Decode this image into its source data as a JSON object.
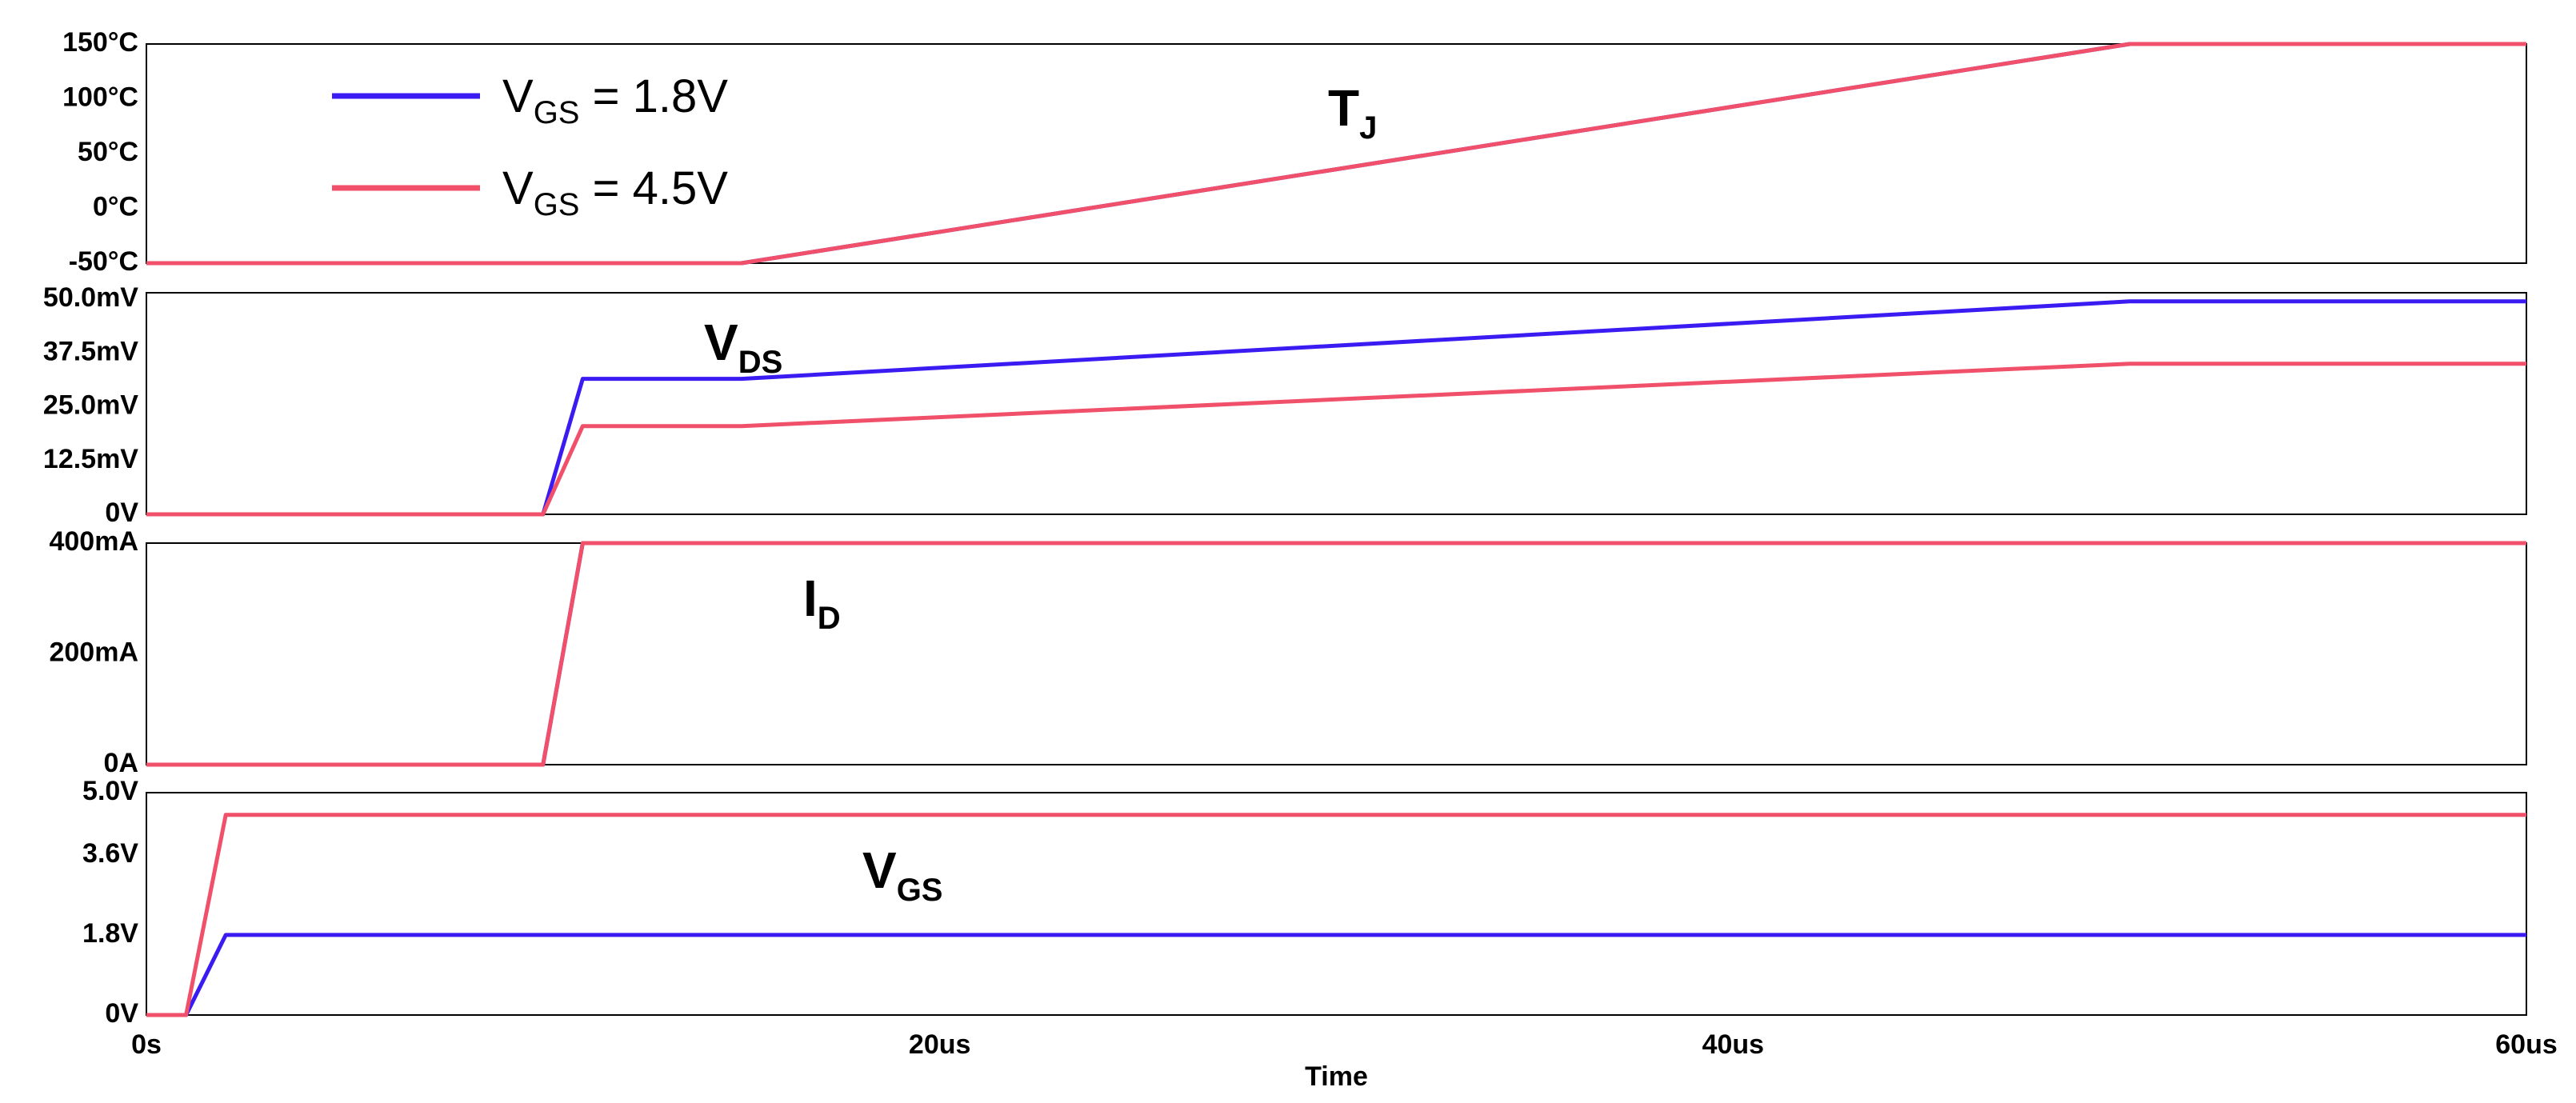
{
  "chart_data": {
    "type": "line",
    "x_axis": {
      "title": "Time",
      "ticks": [
        "0s",
        "20us",
        "40us",
        "60us"
      ],
      "tick_values": [
        0,
        20,
        40,
        60
      ],
      "range": [
        0,
        60
      ],
      "unit": "us"
    },
    "colors": {
      "vgs_1_8": "#3a1cf2",
      "vgs_4_5": "#f0506a",
      "frame": "#000000"
    },
    "legend": {
      "placement": "top-left",
      "entries": [
        {
          "series": "vgs_1_8",
          "main": "V",
          "sub": "GS",
          "rest": " = 1.8V",
          "color": "#3a1cf2"
        },
        {
          "series": "vgs_4_5",
          "main": "V",
          "sub": "GS",
          "rest": " = 4.5V",
          "color": "#f0506a"
        }
      ]
    },
    "panels": [
      {
        "id": "tj",
        "annotation": {
          "main": "T",
          "sub": "J"
        },
        "y_ticks": [
          "150°C",
          "100°C",
          "50°C",
          "0°C",
          "-50°C"
        ],
        "y_tick_values": [
          150,
          100,
          50,
          0,
          -50
        ],
        "ylim": [
          -50,
          150
        ],
        "series": [
          {
            "key": "vgs_1_8",
            "points": [
              [
                0,
                -50
              ],
              [
                15,
                -50
              ],
              [
                50,
                150
              ],
              [
                60,
                150
              ]
            ]
          },
          {
            "key": "vgs_4_5",
            "points": [
              [
                0,
                -50
              ],
              [
                15,
                -50
              ],
              [
                50,
                150
              ],
              [
                60,
                150
              ]
            ]
          }
        ]
      },
      {
        "id": "vds",
        "annotation": {
          "main": "V",
          "sub": "DS"
        },
        "y_ticks": [
          "50.0mV",
          "37.5mV",
          "25.0mV",
          "12.5mV",
          "0V"
        ],
        "y_tick_values": [
          50,
          37.5,
          25,
          12.5,
          0
        ],
        "ylim": [
          0,
          51.5
        ],
        "series": [
          {
            "key": "vgs_1_8",
            "points": [
              [
                0,
                0
              ],
              [
                10,
                0
              ],
              [
                11,
                31.5
              ],
              [
                15,
                31.5
              ],
              [
                50,
                49.5
              ],
              [
                60,
                49.5
              ]
            ]
          },
          {
            "key": "vgs_4_5",
            "points": [
              [
                0,
                0
              ],
              [
                10,
                0
              ],
              [
                11,
                20.5
              ],
              [
                15,
                20.5
              ],
              [
                50,
                35
              ],
              [
                60,
                35
              ]
            ]
          }
        ]
      },
      {
        "id": "id",
        "annotation": {
          "main": "I",
          "sub": "D"
        },
        "y_ticks": [
          "400mA",
          "200mA",
          "0A"
        ],
        "y_tick_values": [
          400,
          200,
          0
        ],
        "ylim": [
          0,
          400
        ],
        "series": [
          {
            "key": "vgs_1_8",
            "points": [
              [
                0,
                0
              ],
              [
                10,
                0
              ],
              [
                11,
                400
              ],
              [
                60,
                400
              ]
            ]
          },
          {
            "key": "vgs_4_5",
            "points": [
              [
                0,
                0
              ],
              [
                10,
                0
              ],
              [
                11,
                400
              ],
              [
                60,
                400
              ]
            ]
          }
        ]
      },
      {
        "id": "vgs",
        "annotation": {
          "main": "V",
          "sub": "GS"
        },
        "y_ticks": [
          "5.0V",
          "3.6V",
          "1.8V",
          "0V"
        ],
        "y_tick_values": [
          5.0,
          3.6,
          1.8,
          0
        ],
        "ylim": [
          0,
          5.0
        ],
        "series": [
          {
            "key": "vgs_1_8",
            "points": [
              [
                0,
                0
              ],
              [
                1,
                0
              ],
              [
                2,
                1.8
              ],
              [
                60,
                1.8
              ]
            ]
          },
          {
            "key": "vgs_4_5",
            "points": [
              [
                0,
                0
              ],
              [
                1,
                0
              ],
              [
                2,
                4.5
              ],
              [
                60,
                4.5
              ]
            ]
          }
        ]
      }
    ]
  }
}
